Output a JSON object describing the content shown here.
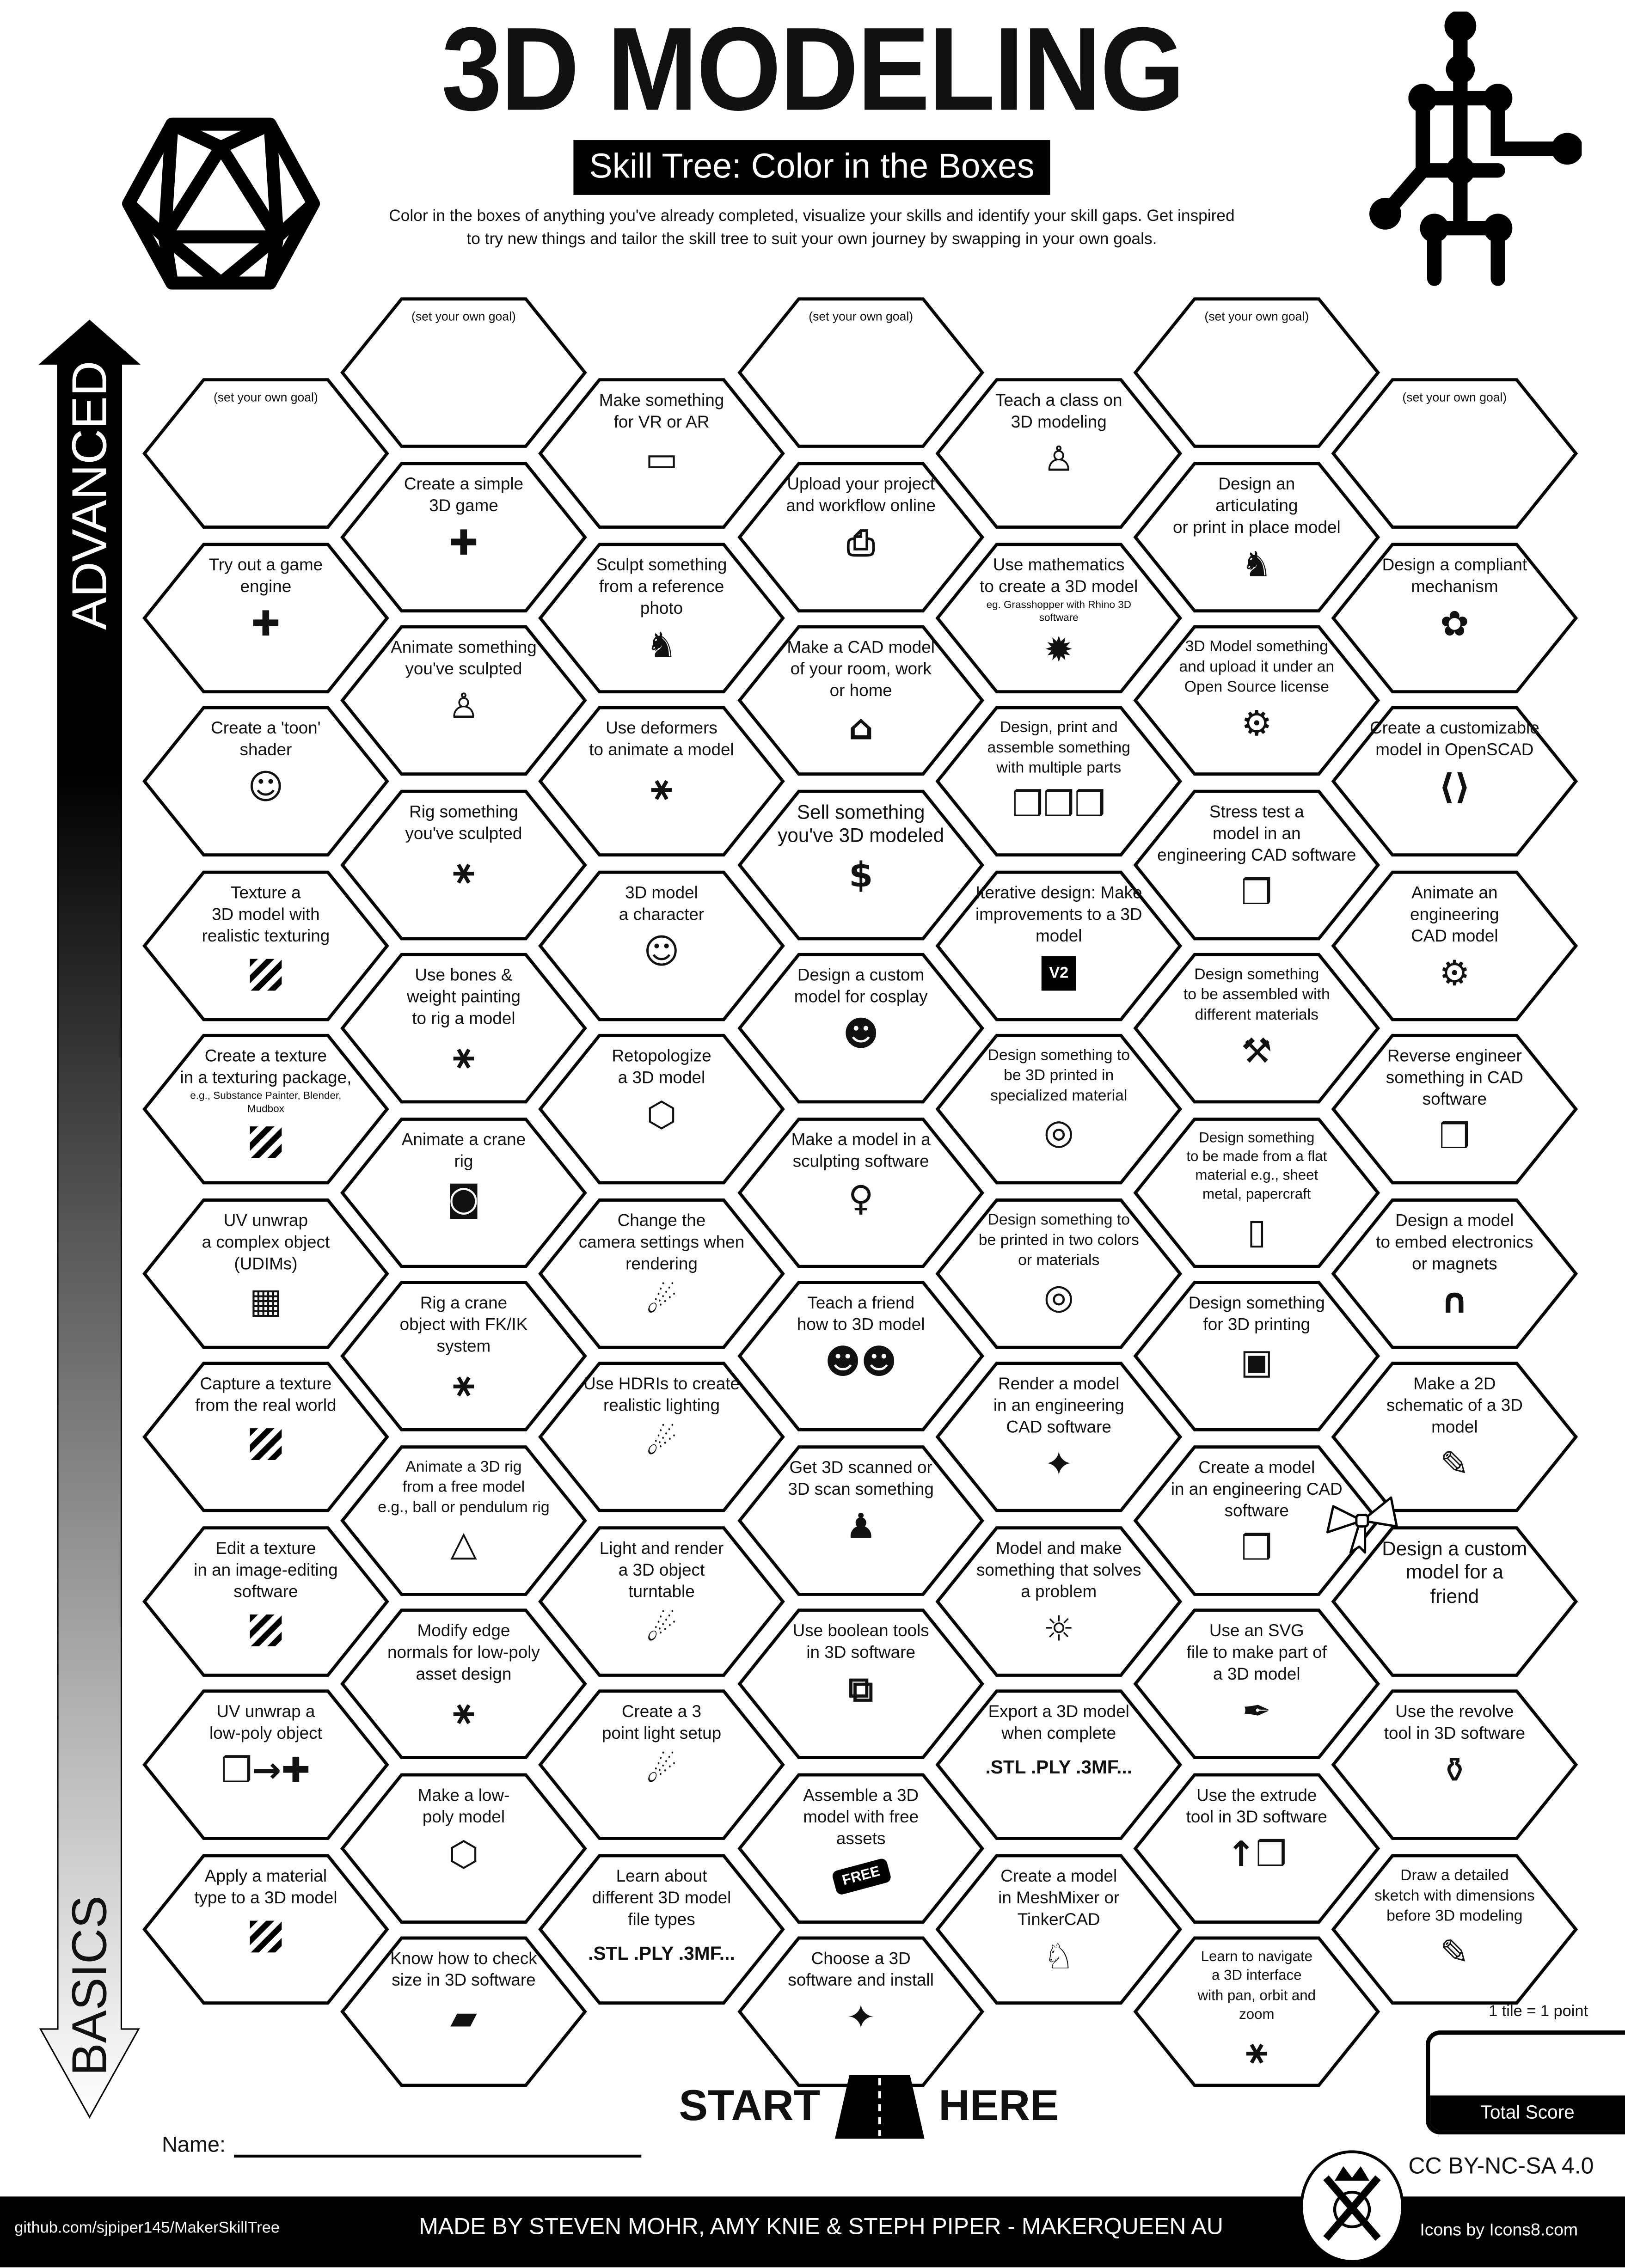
{
  "header": {
    "title": "3D MODELING",
    "subtitle": "Skill Tree: Color in the Boxes",
    "description": "Color in the boxes of anything you've already completed, visualize your skills and identify your skill gaps.  Get inspired\nto try new things and tailor the skill tree to suit your own journey by swapping in your own goals.",
    "left_logo": "icosahedron-icon",
    "right_logo": "rig-skeleton-icon"
  },
  "axis": {
    "top_label": "ADVANCED",
    "bottom_label": "BASICS"
  },
  "goal_label": "(set your own goal)",
  "board": {
    "columns": [
      {
        "tiles": [
          {
            "goal": true
          },
          {
            "text": "Try out a game\nengine",
            "icon": "gamepad"
          },
          {
            "text": "Create a 'toon'\nshader",
            "icon": "anime-face"
          },
          {
            "text": "Texture a\n3D model with\nrealistic texturing",
            "icon": "stripes"
          },
          {
            "text": "Create a texture\nin a texturing package,",
            "note": "e.g., Substance Painter, Blender,\nMudbox",
            "icon": "stripes"
          },
          {
            "text": "UV unwrap\na complex object\n(UDIMs)",
            "icon": "udim-grid"
          },
          {
            "text": "Capture a texture\nfrom the real world",
            "icon": "stripes"
          },
          {
            "text": "Edit a texture\nin an image-editing\nsoftware",
            "icon": "stripes"
          },
          {
            "text": "UV unwrap a\nlow-poly object",
            "icon": "uv-net"
          },
          {
            "text": "Apply a material\ntype to a 3D model",
            "icon": "stripes"
          }
        ]
      },
      {
        "tiles": [
          {
            "goal": true
          },
          {
            "text": "Create a simple\n3D game",
            "icon": "gamepad"
          },
          {
            "text": "Animate something\nyou've sculpted",
            "icon": "walking-person"
          },
          {
            "text": "Rig something\nyou've sculpted",
            "icon": "rig-skeleton"
          },
          {
            "text": "Use bones &\nweight painting\nto rig a model",
            "icon": "rig-skeleton"
          },
          {
            "text": "Animate a crane\nrig",
            "icon": "camera"
          },
          {
            "text": "Rig a crane\nobject with FK/IK\nsystem",
            "icon": "rig-skeleton"
          },
          {
            "text": "Animate a 3D rig\nfrom a free model\ne.g., ball or pendulum rig",
            "icon": "pendulum"
          },
          {
            "text": "Modify edge\nnormals for low-poly\nasset design",
            "icon": "normals"
          },
          {
            "text": "Make a low-\npoly model",
            "icon": "low-poly"
          },
          {
            "text": "Know how to check\nsize in 3D software",
            "icon": "ruler"
          }
        ]
      },
      {
        "tiles": [
          {
            "text": "Make something\nfor VR or AR",
            "icon": "vr-headset"
          },
          {
            "text": "Sculpt something\nfrom a reference\nphoto",
            "icon": "dog"
          },
          {
            "text": "Use deformers\nto animate a model",
            "icon": "rig-skeleton"
          },
          {
            "text": "3D model\na character",
            "icon": "anime-face"
          },
          {
            "text": "Retopologize\na 3D model",
            "icon": "low-poly"
          },
          {
            "text": "Change the\ncamera settings when\nrendering",
            "icon": "spotlight"
          },
          {
            "text": "Use HDRIs to create\nrealistic lighting",
            "icon": "spotlight"
          },
          {
            "text": "Light and render\na 3D object\nturntable",
            "icon": "spotlight"
          },
          {
            "text": "Create a 3\npoint light setup",
            "icon": "spotlight"
          },
          {
            "text": "Learn about\ndifferent 3D model\nfile types",
            "icon_text": ".STL .PLY .3MF..."
          }
        ]
      },
      {
        "tiles": [
          {
            "goal": true
          },
          {
            "text": "Upload your project\nand workflow online",
            "icon": "upload-file"
          },
          {
            "text": "Make a CAD model\nof your room, work\nor home",
            "icon": "house"
          },
          {
            "text": "Sell something\nyou've 3D modeled",
            "icon": "money-bag"
          },
          {
            "text": "Design a custom\nmodel for cosplay",
            "icon": "cosplay"
          },
          {
            "text": "Make a model in a\nsculpting software",
            "icon": "statue"
          },
          {
            "text": "Teach a friend\nhow to 3D model",
            "icon": "friends"
          },
          {
            "text": "Get 3D scanned or\n3D scan something",
            "icon": "body-scan"
          },
          {
            "text": "Use boolean tools\nin 3D software",
            "icon": "boolean"
          },
          {
            "text": "Assemble a 3D\nmodel with free\nassets",
            "icon": "free-tag",
            "icon_text": "FREE"
          },
          {
            "text": "Choose a 3D\nsoftware and install",
            "icon": "sparkle-cube"
          }
        ]
      },
      {
        "tiles": [
          {
            "text": "Teach a class on\n3D modeling",
            "icon": "teacher"
          },
          {
            "text": "Use mathematics\nto create a 3D model",
            "note": "eg. Grasshopper with Rhino 3D\nsoftware",
            "icon": "fractal"
          },
          {
            "text": "Design, print and\nassemble something\nwith multiple parts",
            "icon": "cubes"
          },
          {
            "text": "Iterative design:  Make\nimprovements to a 3D\nmodel",
            "icon": "file-v2",
            "icon_text": "V2"
          },
          {
            "text": "Design something to\nbe 3D printed in\nspecialized material",
            "icon": "filament-spool"
          },
          {
            "text": "Design something to\nbe printed in two colors\nor materials",
            "icon": "filament-spool"
          },
          {
            "text": "Render a model\nin an engineering\nCAD software",
            "icon": "sparkle-cube"
          },
          {
            "text": "Model and make\nsomething that solves\na problem",
            "icon": "lightbulb"
          },
          {
            "text": "Export a 3D model\nwhen complete",
            "icon_text": ".STL .PLY .3MF..."
          },
          {
            "text": "Create a model\nin MeshMixer or\nTinkerCAD",
            "icon": "rabbit"
          }
        ]
      },
      {
        "tiles": [
          {
            "goal": true
          },
          {
            "text": "Design an\narticulating\nor print in place model",
            "icon": "dragon"
          },
          {
            "text": "3D Model something\nand upload it under an\nOpen Source license",
            "icon": "open-source-gear"
          },
          {
            "text": "Stress test a\nmodel in an\nengineering CAD software",
            "icon": "stress-cube"
          },
          {
            "text": "Design something\nto be assembled with\ndifferent materials",
            "icon": "tools"
          },
          {
            "text": "Design something\nto be made from a flat\nmaterial e.g., sheet\nmetal, papercraft",
            "icon": "sheet"
          },
          {
            "text": "Design something\nfor 3D printing",
            "icon": "3d-printer"
          },
          {
            "text": "Create a model\nin an engineering CAD\nsoftware",
            "icon": "cube"
          },
          {
            "text": "Use an SVG\nfile to make part of\na 3D model",
            "icon": "pen-tool"
          },
          {
            "text": "Use the extrude\ntool in 3D software",
            "icon": "extrude"
          },
          {
            "text": "Learn to navigate\na 3D interface\nwith pan, orbit and\nzoom",
            "icon": "axes"
          }
        ]
      },
      {
        "tiles": [
          {
            "goal": true
          },
          {
            "text": "Design a compliant\nmechanism",
            "icon": "brain"
          },
          {
            "text": "Create a customizable\nmodel in OpenSCAD",
            "icon": "code-window"
          },
          {
            "text": "Animate an\nengineering\nCAD model",
            "icon": "gears"
          },
          {
            "text": "Reverse engineer\nsomething in CAD\nsoftware",
            "icon": "cube"
          },
          {
            "text": "Design a model\nto embed electronics\nor magnets",
            "icon": "led"
          },
          {
            "text": "Make a 2D\nschematic of a 3D\nmodel",
            "icon": "schematic"
          },
          {
            "text": "Design a custom\nmodel for a\nfriend",
            "icon": "gift-bow"
          },
          {
            "text": "Use the revolve\ntool in 3D software",
            "icon": "vase"
          },
          {
            "text": "Draw a detailed\nsketch with dimensions\nbefore 3D modeling",
            "icon": "schematic"
          }
        ]
      }
    ]
  },
  "start": {
    "left": "START",
    "right": "HERE",
    "icon": "road"
  },
  "name_label": "Name:",
  "score": {
    "note": "1 tile = 1 point",
    "label": "Total Score"
  },
  "license": "CC BY-NC-SA 4.0",
  "footer": {
    "github": "github.com/sjpiper145/MakerSkillTree",
    "credits": "MADE BY STEVEN MOHR, AMY KNIE & STEPH PIPER  -  MAKERQUEEN AU",
    "icons": "Icons by Icons8.com",
    "logo": "makerqueen-logo"
  }
}
